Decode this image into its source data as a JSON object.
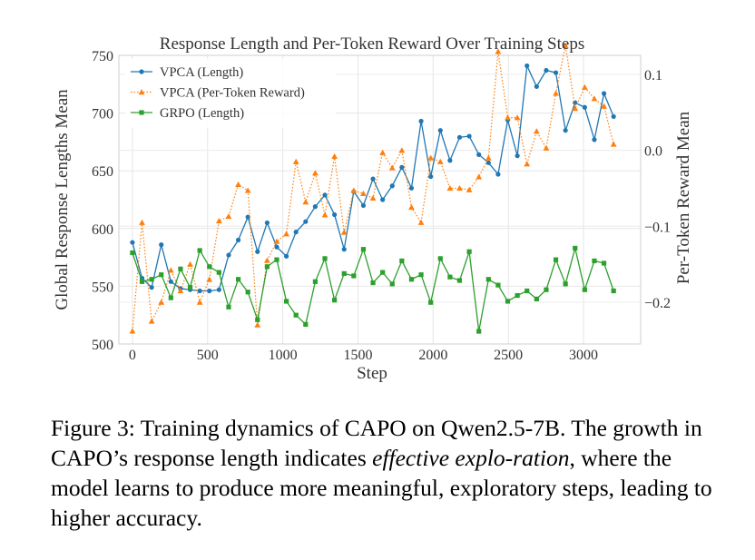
{
  "chart_data": {
    "type": "line",
    "title": "Response Length and Per-Token Reward Over Training Steps",
    "xlabel": "Step",
    "ylabel_left": "Global Response Lengths Mean",
    "ylabel_right": "Per-Token Reward Mean",
    "xlim": [
      -90,
      3380
    ],
    "ylim_left": [
      500,
      750
    ],
    "ylim_right": [
      -0.255,
      0.125
    ],
    "x_ticks": [
      0,
      500,
      1000,
      1500,
      2000,
      2500,
      3000
    ],
    "y_left_ticks": [
      500,
      550,
      600,
      650,
      700,
      750
    ],
    "y_right_ticks": [
      -0.2,
      -0.1,
      0.0,
      0.1
    ],
    "y_right_tick_labels": [
      "−0.2",
      "−0.1",
      "0.0",
      "0.1"
    ],
    "grid": true,
    "legend_position": "upper-left",
    "colors": {
      "vpca_length": "#1f77b4",
      "vpca_reward": "#ff7f0e",
      "grpo_length": "#2ca02c"
    },
    "x": [
      0,
      64,
      128,
      192,
      256,
      320,
      384,
      448,
      512,
      576,
      640,
      704,
      768,
      832,
      896,
      960,
      1024,
      1088,
      1152,
      1216,
      1280,
      1344,
      1408,
      1472,
      1536,
      1600,
      1664,
      1728,
      1792,
      1856,
      1920,
      1984,
      2048,
      2112,
      2176,
      2240,
      2304,
      2368,
      2432,
      2496,
      2560,
      2624,
      2688,
      2752,
      2816,
      2880,
      2944,
      3008,
      3072,
      3136,
      3200
    ],
    "series": [
      {
        "name": "VPCA (Length)",
        "axis": "left",
        "style": "solid",
        "marker": "circle",
        "values": [
          588,
          557,
          549,
          586,
          554,
          548,
          547,
          546,
          546,
          547,
          577,
          590,
          610,
          580,
          605,
          584,
          576,
          597,
          606,
          619,
          629,
          612,
          582,
          632,
          620,
          643,
          625,
          637,
          653,
          635,
          693,
          645,
          685,
          659,
          679,
          680,
          664,
          657,
          647,
          694,
          663,
          741,
          723,
          737,
          735,
          685,
          709,
          705,
          677,
          717,
          697
        ]
      },
      {
        "name": "VPCA (Per-Token Reward)",
        "axis": "right",
        "style": "dotted",
        "marker": "triangle",
        "values": [
          -0.238,
          -0.095,
          -0.225,
          -0.2,
          -0.158,
          -0.185,
          -0.15,
          -0.2,
          -0.17,
          -0.093,
          -0.087,
          -0.045,
          -0.053,
          -0.23,
          -0.145,
          -0.12,
          -0.11,
          -0.015,
          -0.068,
          -0.03,
          -0.085,
          -0.008,
          -0.108,
          -0.053,
          -0.057,
          -0.063,
          -0.003,
          -0.023,
          0.0,
          -0.075,
          -0.095,
          -0.01,
          -0.015,
          -0.05,
          -0.05,
          -0.052,
          -0.035,
          -0.01,
          0.13,
          0.043,
          0.043,
          -0.018,
          0.025,
          0.003,
          0.075,
          0.138,
          0.055,
          0.083,
          0.068,
          0.058,
          0.008
        ]
      },
      {
        "name": "GRPO (Length)",
        "axis": "left",
        "style": "solid",
        "marker": "square",
        "values": [
          579,
          554,
          556,
          560,
          540,
          565,
          549,
          581,
          567,
          562,
          532,
          556,
          545,
          521,
          567,
          573,
          537,
          525,
          517,
          554,
          574,
          538,
          561,
          559,
          582,
          553,
          562,
          552,
          572,
          556,
          560,
          536,
          574,
          558,
          555,
          580,
          511,
          556,
          551,
          537,
          542,
          546,
          539,
          547,
          573,
          552,
          583,
          547,
          572,
          570,
          546
        ]
      }
    ]
  },
  "caption": {
    "part1": "Figure 3: Training dynamics of CAPO on Qwen2.5-7B. The growth in CAPO’s response length indicates ",
    "emphasis": "effective explo-ration",
    "part2": ", where the model learns to produce more meaningful, exploratory steps, leading to higher accuracy."
  }
}
